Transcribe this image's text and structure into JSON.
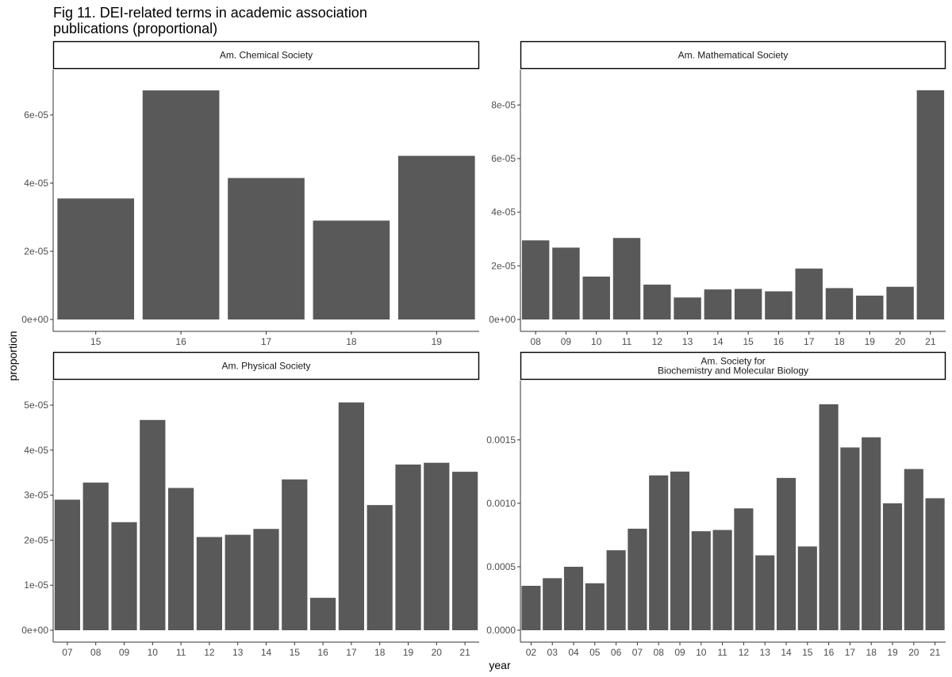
{
  "title": "Fig 11. DEI-related terms in academic association\npublications (proportional)",
  "xlabel": "year",
  "ylabel": "proportion",
  "colors": {
    "bar": "#595959",
    "axis": "#333333",
    "strip_border": "#000000"
  },
  "chart_data": [
    {
      "type": "bar",
      "facet_title": "Am. Chemical Society",
      "categories": [
        "15",
        "16",
        "17",
        "18",
        "19"
      ],
      "values": [
        3.55e-05,
        6.72e-05,
        4.15e-05,
        2.9e-05,
        4.8e-05
      ],
      "ylim": [
        0,
        7e-05
      ],
      "yticks": [
        0,
        2e-05,
        4e-05,
        6e-05
      ],
      "ytick_labels": [
        "0e+00",
        "2e-05",
        "4e-05",
        "6e-05"
      ]
    },
    {
      "type": "bar",
      "facet_title": "Am. Mathematical Society",
      "categories": [
        "08",
        "09",
        "10",
        "11",
        "12",
        "13",
        "14",
        "15",
        "16",
        "17",
        "18",
        "19",
        "20",
        "21"
      ],
      "values": [
        2.95e-05,
        2.68e-05,
        1.6e-05,
        3.04e-05,
        1.3e-05,
        8.2e-06,
        1.12e-05,
        1.14e-05,
        1.05e-05,
        1.9e-05,
        1.17e-05,
        8.9e-06,
        1.22e-05,
        8.55e-05
      ],
      "ylim": [
        0,
        8.9e-05
      ],
      "yticks": [
        0,
        2e-05,
        4e-05,
        6e-05,
        8e-05
      ],
      "ytick_labels": [
        "0e+00",
        "2e-05",
        "4e-05",
        "6e-05",
        "8e-05"
      ]
    },
    {
      "type": "bar",
      "facet_title": "Am. Physical Society",
      "categories": [
        "07",
        "08",
        "09",
        "10",
        "11",
        "12",
        "13",
        "14",
        "15",
        "16",
        "17",
        "18",
        "19",
        "20",
        "21"
      ],
      "values": [
        2.9e-05,
        3.28e-05,
        2.4e-05,
        4.67e-05,
        3.16e-05,
        2.07e-05,
        2.12e-05,
        2.25e-05,
        3.35e-05,
        7.2e-06,
        5.06e-05,
        2.78e-05,
        3.68e-05,
        3.72e-05,
        3.52e-05
      ],
      "ylim": [
        0,
        5.3e-05
      ],
      "yticks": [
        0,
        1e-05,
        2e-05,
        3e-05,
        4e-05,
        5e-05
      ],
      "ytick_labels": [
        "0e+00",
        "1e-05",
        "2e-05",
        "3e-05",
        "4e-05",
        "5e-05"
      ]
    },
    {
      "type": "bar",
      "facet_title": "Am. Society for\nBiochemistry and Molecular Biology",
      "categories": [
        "02",
        "03",
        "04",
        "05",
        "06",
        "07",
        "08",
        "09",
        "10",
        "11",
        "12",
        "13",
        "14",
        "15",
        "16",
        "17",
        "18",
        "19",
        "20",
        "21"
      ],
      "values": [
        0.00035,
        0.00041,
        0.0005,
        0.00037,
        0.00063,
        0.0008,
        0.00122,
        0.00125,
        0.00078,
        0.00079,
        0.00096,
        0.00059,
        0.0012,
        0.00066,
        0.00178,
        0.00144,
        0.00152,
        0.001,
        0.00127,
        0.00104
      ],
      "ylim": [
        0,
        0.00188
      ],
      "yticks": [
        0,
        0.0005,
        0.001,
        0.0015
      ],
      "ytick_labels": [
        "0.0000",
        "0.0005",
        "0.0010",
        "0.0015"
      ]
    }
  ]
}
